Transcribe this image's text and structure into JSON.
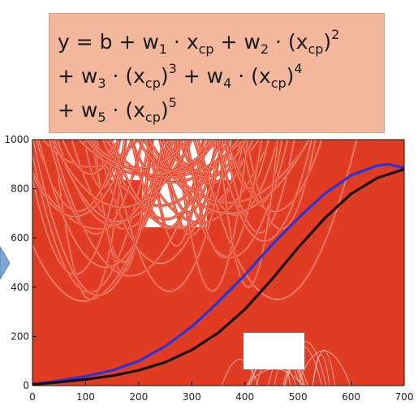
{
  "formula": {
    "line1": {
      "y": "y",
      "eq": " = b + w",
      "w1": "1",
      "dot1": " · x",
      "cp1": "cp",
      "plus1": " + w",
      "w2": "2",
      "dot2": " · (x",
      "cp2": "cp",
      "close2": ")",
      "p2": "2"
    },
    "line2": {
      "plus": "+ w",
      "w3": "3",
      "dot3": " · (x",
      "cp3": "cp",
      "close3": ")",
      "p3": "3",
      "plus4": " + w",
      "w4": "4",
      "dot4": " · (x",
      "cp4": "cp",
      "close4": ")",
      "p4": "4"
    },
    "line3": {
      "plus": "+ w",
      "w5": "5",
      "dot5": " · (x",
      "cp5": "cp",
      "close5": ")",
      "p5": "5"
    }
  },
  "chart_data": {
    "type": "line",
    "xlim": [
      0,
      700
    ],
    "ylim": [
      0,
      1000
    ],
    "x_ticks": [
      0,
      100,
      200,
      300,
      400,
      500,
      600,
      700
    ],
    "y_ticks": [
      0,
      200,
      400,
      600,
      800,
      1000
    ],
    "background_color": "#e03c24",
    "grid": false,
    "series": [
      {
        "color": "#2a35d8",
        "points": [
          [
            0,
            5
          ],
          [
            50,
            20
          ],
          [
            100,
            38
          ],
          [
            150,
            62
          ],
          [
            200,
            100
          ],
          [
            250,
            160
          ],
          [
            300,
            240
          ],
          [
            350,
            340
          ],
          [
            400,
            450
          ],
          [
            450,
            570
          ],
          [
            500,
            680
          ],
          [
            550,
            780
          ],
          [
            600,
            855
          ],
          [
            650,
            895
          ],
          [
            670,
            900
          ],
          [
            700,
            885
          ]
        ]
      },
      {
        "color": "#1a0a08",
        "points": [
          [
            0,
            5
          ],
          [
            50,
            14
          ],
          [
            100,
            25
          ],
          [
            150,
            40
          ],
          [
            200,
            62
          ],
          [
            250,
            95
          ],
          [
            300,
            145
          ],
          [
            350,
            215
          ],
          [
            400,
            310
          ],
          [
            450,
            430
          ],
          [
            500,
            560
          ],
          [
            550,
            680
          ],
          [
            600,
            780
          ],
          [
            650,
            845
          ],
          [
            700,
            880
          ]
        ]
      }
    ]
  }
}
